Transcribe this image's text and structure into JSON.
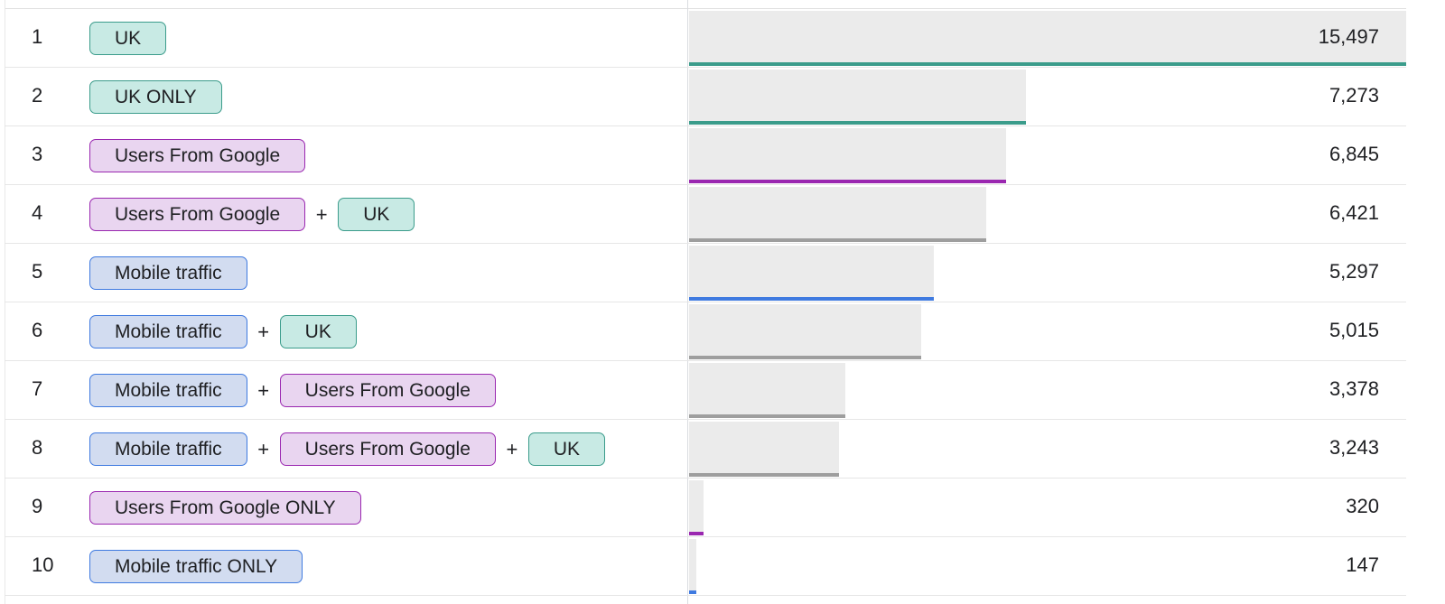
{
  "segment_styles": {
    "UK": {
      "bg": "#c8eae4",
      "border": "#3b9c8b"
    },
    "UK ONLY": {
      "bg": "#c8eae4",
      "border": "#3b9c8b"
    },
    "Users From Google": {
      "bg": "#e9d5f0",
      "border": "#9a27b0"
    },
    "Users From Google ONLY": {
      "bg": "#e9d5f0",
      "border": "#9a27b0"
    },
    "Mobile traffic": {
      "bg": "#d2dcf0",
      "border": "#3f7ae0"
    },
    "Mobile traffic ONLY": {
      "bg": "#d2dcf0",
      "border": "#3f7ae0"
    }
  },
  "max_value": 15497,
  "rows": [
    {
      "rank": "1",
      "segments": [
        "UK"
      ],
      "value": 15497,
      "value_label": "15,497",
      "line_color": "#3b9c8b"
    },
    {
      "rank": "2",
      "segments": [
        "UK ONLY"
      ],
      "value": 7273,
      "value_label": "7,273",
      "line_color": "#3b9c8b"
    },
    {
      "rank": "3",
      "segments": [
        "Users From Google"
      ],
      "value": 6845,
      "value_label": "6,845",
      "line_color": "#9a27b0"
    },
    {
      "rank": "4",
      "segments": [
        "Users From Google",
        "UK"
      ],
      "value": 6421,
      "value_label": "6,421",
      "line_color": "#9e9e9e"
    },
    {
      "rank": "5",
      "segments": [
        "Mobile traffic"
      ],
      "value": 5297,
      "value_label": "5,297",
      "line_color": "#3f7ae0"
    },
    {
      "rank": "6",
      "segments": [
        "Mobile traffic",
        "UK"
      ],
      "value": 5015,
      "value_label": "5,015",
      "line_color": "#9e9e9e"
    },
    {
      "rank": "7",
      "segments": [
        "Mobile traffic",
        "Users From Google"
      ],
      "value": 3378,
      "value_label": "3,378",
      "line_color": "#9e9e9e"
    },
    {
      "rank": "8",
      "segments": [
        "Mobile traffic",
        "Users From Google",
        "UK"
      ],
      "value": 3243,
      "value_label": "3,243",
      "line_color": "#9e9e9e"
    },
    {
      "rank": "9",
      "segments": [
        "Users From Google ONLY"
      ],
      "value": 320,
      "value_label": "320",
      "line_color": "#9a27b0"
    },
    {
      "rank": "10",
      "segments": [
        "Mobile traffic ONLY"
      ],
      "value": 147,
      "value_label": "147",
      "line_color": "#3f7ae0"
    }
  ],
  "separator": "+"
}
